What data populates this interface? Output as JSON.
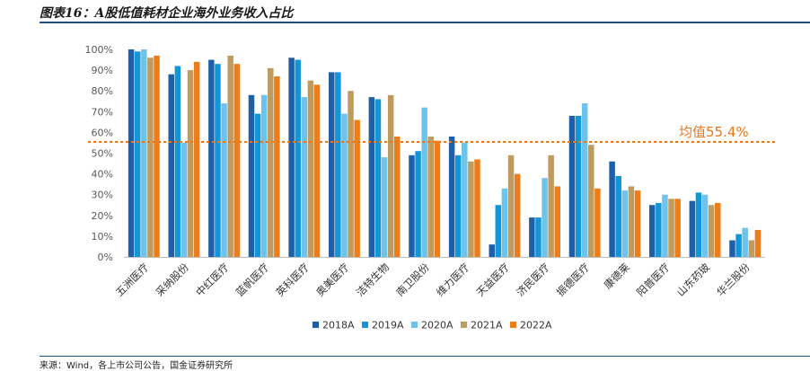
{
  "header": {
    "title": "图表16：A股低值耗材企业海外业务收入占比"
  },
  "footer": {
    "source": "来源：Wind，各上市公司公告，国金证券研究所"
  },
  "chart_data": {
    "type": "bar",
    "categories": [
      "五洲医疗",
      "采纳股份",
      "中红医疗",
      "蓝帆医疗",
      "英科医疗",
      "奥美医疗",
      "洁特生物",
      "南卫股份",
      "维力医疗",
      "天益医疗",
      "济民医疗",
      "振德医疗",
      "康德莱",
      "阳普医疗",
      "山东药玻",
      "华兰股份"
    ],
    "series": [
      {
        "name": "2018A",
        "color": "#1f5fa8",
        "values": [
          100,
          88,
          95,
          78,
          96,
          89,
          77,
          49,
          58,
          6,
          19,
          68,
          46,
          25,
          27,
          8
        ]
      },
      {
        "name": "2019A",
        "color": "#1296d8",
        "values": [
          99,
          92,
          93,
          69,
          95,
          89,
          76,
          51,
          49,
          25,
          19,
          68,
          39,
          26,
          31,
          11
        ]
      },
      {
        "name": "2020A",
        "color": "#6cc3ec",
        "values": [
          100,
          55,
          74,
          78,
          77,
          69,
          48,
          72,
          55,
          33,
          38,
          74,
          32,
          30,
          30,
          14
        ]
      },
      {
        "name": "2021A",
        "color": "#bf9b5f",
        "values": [
          96,
          90,
          97,
          91,
          85,
          80,
          78,
          58,
          46,
          49,
          49,
          54,
          34,
          28,
          25,
          8
        ]
      },
      {
        "name": "2022A",
        "color": "#ed7d1a",
        "values": [
          97,
          94,
          93,
          87,
          83,
          66,
          58,
          56,
          47,
          40,
          34,
          33,
          32,
          28,
          26,
          13
        ]
      }
    ],
    "ylim": [
      0,
      100
    ],
    "yticks": [
      "0%",
      "10%",
      "20%",
      "30%",
      "40%",
      "50%",
      "60%",
      "70%",
      "80%",
      "90%",
      "100%"
    ],
    "average": {
      "value": 55.4,
      "label": "均值55.4%",
      "color": "#e87722"
    },
    "legend_position": "bottom",
    "grid": false
  }
}
